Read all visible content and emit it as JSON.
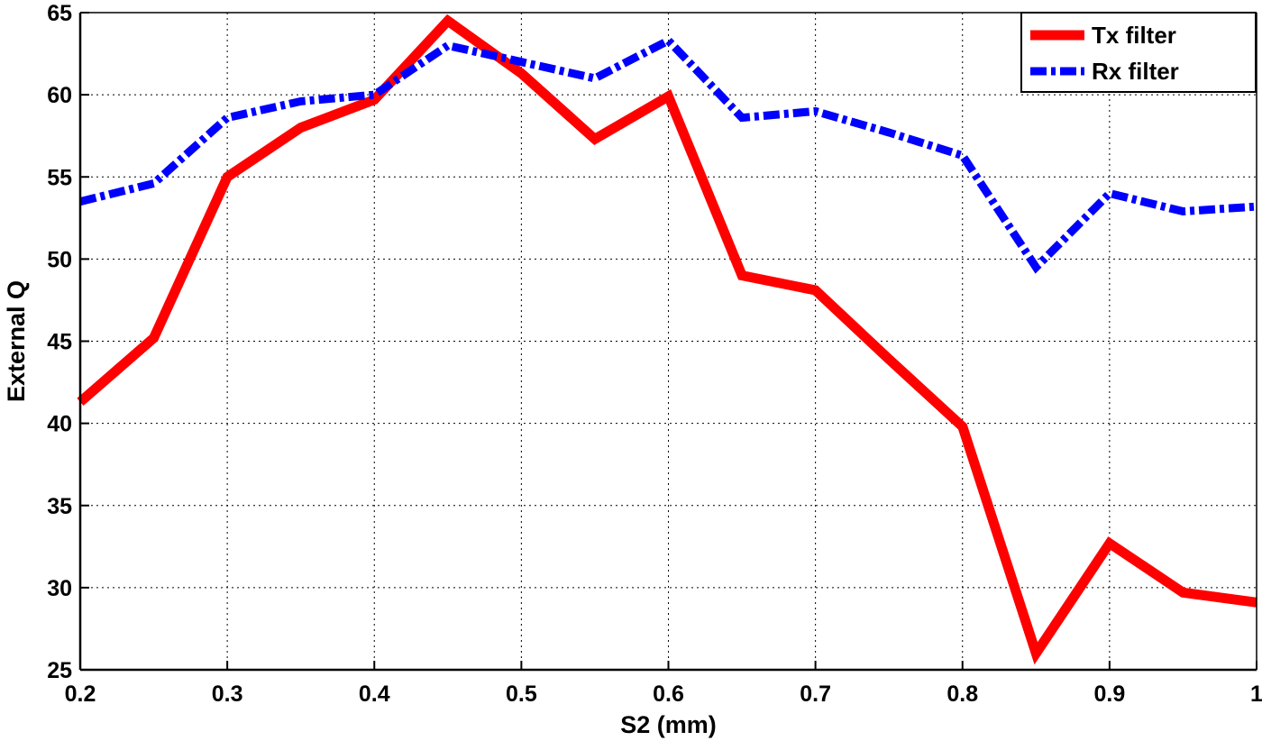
{
  "chart_data": {
    "type": "line",
    "xlabel": "S2 (mm)",
    "ylabel": "External Q",
    "xlim": [
      0.2,
      1.0
    ],
    "ylim": [
      25,
      65
    ],
    "xticks": [
      0.2,
      0.3,
      0.4,
      0.5,
      0.6,
      0.7,
      0.8,
      0.9,
      1.0
    ],
    "xtick_labels": [
      "0.2",
      "0.3",
      "0.4",
      "0.5",
      "0.6",
      "0.7",
      "0.8",
      "0.9",
      "1"
    ],
    "yticks": [
      25,
      30,
      35,
      40,
      45,
      50,
      55,
      60,
      65
    ],
    "ytick_labels": [
      "25",
      "30",
      "35",
      "40",
      "45",
      "50",
      "55",
      "60",
      "65"
    ],
    "grid": true,
    "legend_position": "top-right",
    "series": [
      {
        "name": "Tx filter",
        "color": "#ff0000",
        "line_style": "solid",
        "x": [
          0.2,
          0.25,
          0.3,
          0.35,
          0.4,
          0.45,
          0.5,
          0.55,
          0.6,
          0.65,
          0.7,
          0.75,
          0.8,
          0.85,
          0.9,
          0.95,
          1.0
        ],
        "y": [
          41.3,
          45.2,
          55.0,
          58.0,
          59.7,
          64.5,
          61.3,
          57.3,
          59.9,
          49.0,
          48.1,
          43.9,
          39.8,
          26.0,
          32.7,
          29.7,
          29.1
        ]
      },
      {
        "name": "Rx filter",
        "color": "#0000ff",
        "line_style": "dashdot",
        "x": [
          0.2,
          0.25,
          0.3,
          0.35,
          0.4,
          0.45,
          0.5,
          0.55,
          0.6,
          0.65,
          0.7,
          0.75,
          0.8,
          0.85,
          0.9,
          0.95,
          1.0
        ],
        "y": [
          53.5,
          54.6,
          58.6,
          59.6,
          60.0,
          63.0,
          62.0,
          61.0,
          63.3,
          58.6,
          59.0,
          57.7,
          56.3,
          49.5,
          54.0,
          52.9,
          53.2
        ]
      }
    ]
  }
}
